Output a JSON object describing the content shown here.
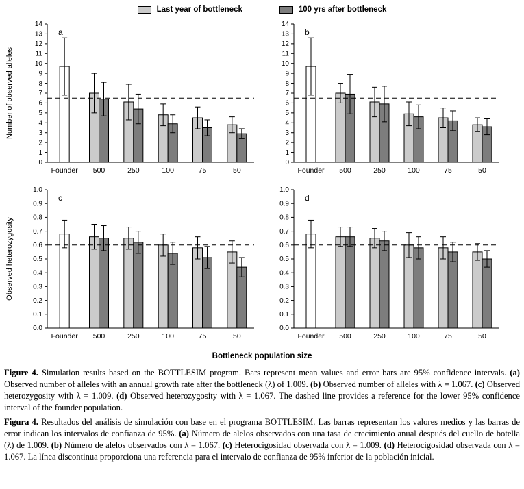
{
  "colors": {
    "light": "#cbcbcb",
    "dark": "#7d7d7d",
    "white": "#ffffff",
    "axis": "#000000"
  },
  "legend": {
    "items": [
      {
        "label": "Last year of bottleneck",
        "color_key": "light"
      },
      {
        "label": "100 yrs after bottleneck",
        "color_key": "dark"
      }
    ]
  },
  "xlabel": "Bottleneck population size",
  "chart_data": [
    {
      "type": "bar",
      "panel_label": "a",
      "ylabel": "Number of observed alleles",
      "ylim": [
        0,
        14
      ],
      "ytick_values": [
        0,
        1,
        2,
        3,
        4,
        5,
        6,
        7,
        8,
        9,
        10,
        11,
        12,
        13,
        14
      ],
      "ytick_labels": [
        "0",
        "1",
        "2",
        "3",
        "4",
        "5",
        "6",
        "7",
        "8",
        "9",
        "10",
        "11",
        "12",
        "13",
        "14"
      ],
      "dashed_line_y": 6.5,
      "grid": false,
      "categories": [
        "Founder",
        "500",
        "250",
        "100",
        "75",
        "50"
      ],
      "series": [
        {
          "name": "Founder",
          "color_key": "white",
          "values": [
            9.7,
            null,
            null,
            null,
            null,
            null
          ],
          "errors": [
            2.9,
            null,
            null,
            null,
            null,
            null
          ]
        },
        {
          "name": "Last year of bottleneck",
          "color_key": "light",
          "values": [
            null,
            7.0,
            6.1,
            4.8,
            4.5,
            3.8
          ],
          "errors": [
            null,
            2.0,
            1.8,
            1.1,
            1.1,
            0.8
          ]
        },
        {
          "name": "100 yrs after bottleneck",
          "color_key": "dark",
          "values": [
            null,
            6.4,
            5.4,
            3.9,
            3.5,
            2.9
          ],
          "errors": [
            null,
            1.7,
            1.5,
            0.9,
            0.8,
            0.5
          ]
        }
      ]
    },
    {
      "type": "bar",
      "panel_label": "b",
      "ylabel": "",
      "ylim": [
        0,
        14
      ],
      "ytick_values": [
        0,
        1,
        2,
        3,
        4,
        5,
        6,
        7,
        8,
        9,
        10,
        11,
        12,
        13,
        14
      ],
      "ytick_labels": [
        "0",
        "1",
        "2",
        "3",
        "4",
        "5",
        "6",
        "7",
        "8",
        "9",
        "10",
        "11",
        "12",
        "13",
        "14"
      ],
      "dashed_line_y": 6.5,
      "grid": false,
      "categories": [
        "Founder",
        "500",
        "250",
        "100",
        "75",
        "50"
      ],
      "series": [
        {
          "name": "Founder",
          "color_key": "white",
          "values": [
            9.7,
            null,
            null,
            null,
            null,
            null
          ],
          "errors": [
            2.9,
            null,
            null,
            null,
            null,
            null
          ]
        },
        {
          "name": "Last year of bottleneck",
          "color_key": "light",
          "values": [
            null,
            7.0,
            6.1,
            4.9,
            4.5,
            3.8
          ],
          "errors": [
            null,
            1.0,
            1.5,
            1.2,
            1.0,
            0.7
          ]
        },
        {
          "name": "100 yrs after bottleneck",
          "color_key": "dark",
          "values": [
            null,
            6.9,
            5.9,
            4.6,
            4.2,
            3.6
          ],
          "errors": [
            null,
            2.0,
            1.8,
            1.2,
            1.0,
            0.8
          ]
        }
      ]
    },
    {
      "type": "bar",
      "panel_label": "c",
      "ylabel": "Observed heterozygosity",
      "ylim": [
        0,
        1
      ],
      "ytick_values": [
        0,
        0.1,
        0.2,
        0.3,
        0.4,
        0.5,
        0.6,
        0.7,
        0.8,
        0.9,
        1.0
      ],
      "ytick_labels": [
        "0.0",
        "0.1",
        "0.2",
        "0.3",
        "0.4",
        "0.5",
        "0.6",
        "0.7",
        "0.8",
        "0.9",
        "1.0"
      ],
      "dashed_line_y": 0.6,
      "grid": false,
      "categories": [
        "Founder",
        "500",
        "250",
        "100",
        "75",
        "50"
      ],
      "series": [
        {
          "name": "Founder",
          "color_key": "white",
          "values": [
            0.68,
            null,
            null,
            null,
            null,
            null
          ],
          "errors": [
            0.1,
            null,
            null,
            null,
            null,
            null
          ]
        },
        {
          "name": "Last year of bottleneck",
          "color_key": "light",
          "values": [
            null,
            0.66,
            0.65,
            0.6,
            0.58,
            0.55
          ],
          "errors": [
            null,
            0.09,
            0.08,
            0.08,
            0.08,
            0.08
          ]
        },
        {
          "name": "100 yrs after bottleneck",
          "color_key": "dark",
          "values": [
            null,
            0.65,
            0.62,
            0.54,
            0.51,
            0.44
          ],
          "errors": [
            null,
            0.09,
            0.08,
            0.08,
            0.08,
            0.07
          ]
        }
      ]
    },
    {
      "type": "bar",
      "panel_label": "d",
      "ylabel": "",
      "ylim": [
        0,
        1
      ],
      "ytick_values": [
        0,
        0.1,
        0.2,
        0.3,
        0.4,
        0.5,
        0.6,
        0.7,
        0.8,
        0.9,
        1.0
      ],
      "ytick_labels": [
        "0.0",
        "0.1",
        "0.2",
        "0.3",
        "0.4",
        "0.5",
        "0.6",
        "0.7",
        "0.8",
        "0.9",
        "1.0"
      ],
      "dashed_line_y": 0.6,
      "grid": false,
      "categories": [
        "Founder",
        "500",
        "250",
        "100",
        "75",
        "50"
      ],
      "series": [
        {
          "name": "Founder",
          "color_key": "white",
          "values": [
            0.68,
            null,
            null,
            null,
            null,
            null
          ],
          "errors": [
            0.1,
            null,
            null,
            null,
            null,
            null
          ]
        },
        {
          "name": "Last year of bottleneck",
          "color_key": "light",
          "values": [
            null,
            0.66,
            0.65,
            0.6,
            0.58,
            0.55
          ],
          "errors": [
            null,
            0.07,
            0.07,
            0.09,
            0.08,
            0.06
          ]
        },
        {
          "name": "100 yrs after bottleneck",
          "color_key": "dark",
          "values": [
            null,
            0.66,
            0.63,
            0.58,
            0.55,
            0.5
          ],
          "errors": [
            null,
            0.07,
            0.07,
            0.08,
            0.07,
            0.06
          ]
        }
      ]
    }
  ],
  "captions": [
    {
      "lang": "en",
      "segments": [
        {
          "t": "Figure 4.",
          "b": true
        },
        {
          "t": " Simulation results based on the BOTTLESIM program. Bars represent mean values and error bars are 95% confidence intervals. ",
          "b": false
        },
        {
          "t": "(a)",
          "b": true
        },
        {
          "t": " Observed number of alleles with an annual growth rate after the bottleneck (λ) of 1.009. ",
          "b": false
        },
        {
          "t": "(b)",
          "b": true
        },
        {
          "t": " Observed number of alleles with λ = 1.067. ",
          "b": false
        },
        {
          "t": "(c)",
          "b": true
        },
        {
          "t": " Observed heterozygosity with λ = 1.009. ",
          "b": false
        },
        {
          "t": "(d)",
          "b": true
        },
        {
          "t": " Observed heterozygosity with λ = 1.067. The dashed line provides a reference for the lower 95% confidence interval of the founder population.",
          "b": false
        }
      ]
    },
    {
      "lang": "es",
      "segments": [
        {
          "t": "Figura 4.",
          "b": true
        },
        {
          "t": " Resultados del análisis de simulación con base en el programa BOTTLESIM. Las barras representan los valores medios y las barras de error indican los intervalos de confianza de 95%. ",
          "b": false
        },
        {
          "t": "(a)",
          "b": true
        },
        {
          "t": " Número de alelos observados con una tasa de crecimiento anual después del cuello de botella (λ) de 1.009. ",
          "b": false
        },
        {
          "t": "(b)",
          "b": true
        },
        {
          "t": " Número de alelos observados con λ = 1.067. ",
          "b": false
        },
        {
          "t": "(c)",
          "b": true
        },
        {
          "t": " Heterocigosidad observada con λ = 1.009. ",
          "b": false
        },
        {
          "t": "(d)",
          "b": true
        },
        {
          "t": " Heterocigosidad observada con λ = 1.067. La línea discontinua proporciona una referencia para el intervalo de confianza de 95% inferior de la población inicial.",
          "b": false
        }
      ]
    }
  ]
}
